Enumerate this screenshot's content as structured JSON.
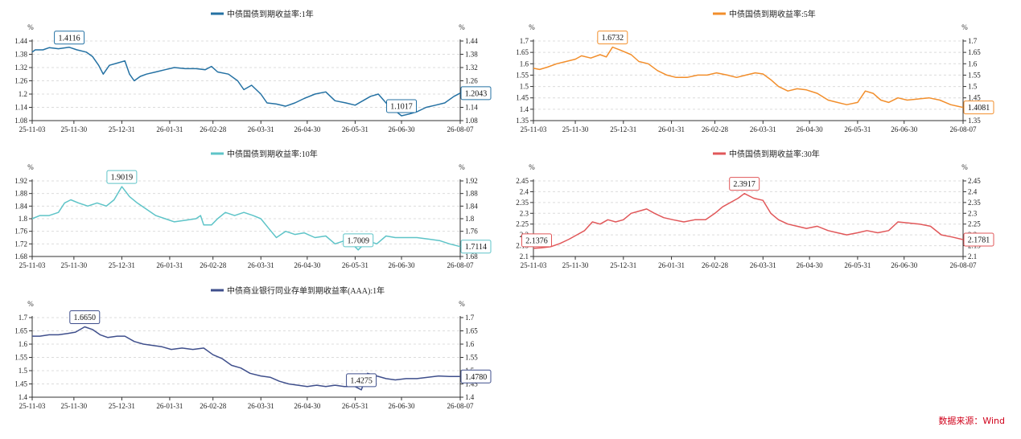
{
  "source": "数据来源：Wind",
  "percent_symbol": "%",
  "chart_data": [
    {
      "type": "line",
      "title": "",
      "color": "#2471a3",
      "series": [
        {
          "name": "中债国债到期收益率:1年"
        }
      ],
      "x_ticks": [
        "25-11-03",
        "25-11-30",
        "25-12-31",
        "26-01-31",
        "26-02-28",
        "26-03-31",
        "26-04-30",
        "26-05-31",
        "26-06-30",
        "26-08-07"
      ],
      "ylim": [
        1.08,
        1.44
      ],
      "y_ticks": [
        "1.08",
        "1.14",
        "1.2",
        "1.26",
        "1.32",
        "1.38",
        "1.44"
      ],
      "grid": true,
      "annotations": [
        {
          "label": "1.4116",
          "x": "2025-11-27",
          "y": 1.4116,
          "kind": "max"
        },
        {
          "label": "1.1017",
          "x": "2026-06-30",
          "y": 1.1017,
          "kind": "min"
        },
        {
          "label": "1.2043",
          "x": "2026-08-07",
          "y": 1.2043,
          "kind": "last"
        }
      ],
      "data": [
        [
          "2025-11-03",
          1.39
        ],
        [
          "2025-11-05",
          1.4
        ],
        [
          "2025-11-10",
          1.4
        ],
        [
          "2025-11-14",
          1.41
        ],
        [
          "2025-11-20",
          1.405
        ],
        [
          "2025-11-27",
          1.4116
        ],
        [
          "2025-12-02",
          1.4
        ],
        [
          "2025-12-08",
          1.39
        ],
        [
          "2025-12-12",
          1.37
        ],
        [
          "2025-12-16",
          1.33
        ],
        [
          "2025-12-19",
          1.29
        ],
        [
          "2025-12-23",
          1.33
        ],
        [
          "2025-12-28",
          1.34
        ],
        [
          "2026-01-02",
          1.35
        ],
        [
          "2026-01-05",
          1.29
        ],
        [
          "2026-01-08",
          1.26
        ],
        [
          "2026-01-12",
          1.28
        ],
        [
          "2026-01-16",
          1.29
        ],
        [
          "2026-01-22",
          1.3
        ],
        [
          "2026-01-28",
          1.31
        ],
        [
          "2026-02-03",
          1.32
        ],
        [
          "2026-02-10",
          1.315
        ],
        [
          "2026-02-17",
          1.315
        ],
        [
          "2026-02-23",
          1.31
        ],
        [
          "2026-02-27",
          1.325
        ],
        [
          "2026-03-03",
          1.3
        ],
        [
          "2026-03-10",
          1.29
        ],
        [
          "2026-03-16",
          1.26
        ],
        [
          "2026-03-20",
          1.22
        ],
        [
          "2026-03-25",
          1.24
        ],
        [
          "2026-03-31",
          1.2
        ],
        [
          "2026-04-04",
          1.16
        ],
        [
          "2026-04-10",
          1.155
        ],
        [
          "2026-04-16",
          1.145
        ],
        [
          "2026-04-22",
          1.16
        ],
        [
          "2026-04-28",
          1.18
        ],
        [
          "2026-05-05",
          1.2
        ],
        [
          "2026-05-12",
          1.21
        ],
        [
          "2026-05-18",
          1.17
        ],
        [
          "2026-05-25",
          1.16
        ],
        [
          "2026-05-31",
          1.15
        ],
        [
          "2026-06-05",
          1.17
        ],
        [
          "2026-06-10",
          1.19
        ],
        [
          "2026-06-15",
          1.2
        ],
        [
          "2026-06-20",
          1.16
        ],
        [
          "2026-06-25",
          1.13
        ],
        [
          "2026-06-30",
          1.1017
        ],
        [
          "2026-07-05",
          1.11
        ],
        [
          "2026-07-10",
          1.12
        ],
        [
          "2026-07-16",
          1.14
        ],
        [
          "2026-07-22",
          1.15
        ],
        [
          "2026-07-28",
          1.16
        ],
        [
          "2026-08-03",
          1.19
        ],
        [
          "2026-08-07",
          1.2043
        ]
      ]
    },
    {
      "type": "line",
      "title": "",
      "color": "#f28e2b",
      "series": [
        {
          "name": "中债国债到期收益率:5年"
        }
      ],
      "x_ticks": [
        "25-11-03",
        "25-11-30",
        "25-12-31",
        "26-01-31",
        "26-02-28",
        "26-03-31",
        "26-04-30",
        "26-05-31",
        "26-06-30",
        "26-08-07"
      ],
      "ylim": [
        1.35,
        1.7
      ],
      "y_ticks": [
        "1.35",
        "1.4",
        "1.45",
        "1.5",
        "1.55",
        "1.6",
        "1.65",
        "1.7"
      ],
      "grid": true,
      "annotations": [
        {
          "label": "1.6732",
          "x": "2025-12-24",
          "y": 1.6732,
          "kind": "max"
        },
        {
          "label": "1.4081",
          "x": "2026-08-07",
          "y": 1.4081,
          "kind": "last"
        }
      ],
      "data": [
        [
          "2025-11-03",
          1.58
        ],
        [
          "2025-11-07",
          1.575
        ],
        [
          "2025-11-12",
          1.585
        ],
        [
          "2025-11-18",
          1.6
        ],
        [
          "2025-11-24",
          1.61
        ],
        [
          "2025-11-30",
          1.62
        ],
        [
          "2025-12-04",
          1.635
        ],
        [
          "2025-12-10",
          1.625
        ],
        [
          "2025-12-16",
          1.64
        ],
        [
          "2025-12-20",
          1.63
        ],
        [
          "2025-12-24",
          1.6732
        ],
        [
          "2025-12-29",
          1.66
        ],
        [
          "2026-01-05",
          1.64
        ],
        [
          "2026-01-10",
          1.61
        ],
        [
          "2026-01-16",
          1.6
        ],
        [
          "2026-01-22",
          1.57
        ],
        [
          "2026-01-28",
          1.55
        ],
        [
          "2026-02-03",
          1.54
        ],
        [
          "2026-02-10",
          1.54
        ],
        [
          "2026-02-17",
          1.55
        ],
        [
          "2026-02-23",
          1.55
        ],
        [
          "2026-03-01",
          1.56
        ],
        [
          "2026-03-08",
          1.55
        ],
        [
          "2026-03-14",
          1.54
        ],
        [
          "2026-03-20",
          1.55
        ],
        [
          "2026-03-26",
          1.56
        ],
        [
          "2026-03-31",
          1.555
        ],
        [
          "2026-04-05",
          1.53
        ],
        [
          "2026-04-10",
          1.5
        ],
        [
          "2026-04-16",
          1.48
        ],
        [
          "2026-04-22",
          1.49
        ],
        [
          "2026-04-28",
          1.485
        ],
        [
          "2026-05-05",
          1.47
        ],
        [
          "2026-05-12",
          1.44
        ],
        [
          "2026-05-18",
          1.43
        ],
        [
          "2026-05-24",
          1.42
        ],
        [
          "2026-05-31",
          1.43
        ],
        [
          "2026-06-05",
          1.48
        ],
        [
          "2026-06-10",
          1.47
        ],
        [
          "2026-06-15",
          1.44
        ],
        [
          "2026-06-20",
          1.43
        ],
        [
          "2026-06-26",
          1.45
        ],
        [
          "2026-07-02",
          1.44
        ],
        [
          "2026-07-09",
          1.445
        ],
        [
          "2026-07-16",
          1.45
        ],
        [
          "2026-07-23",
          1.44
        ],
        [
          "2026-07-30",
          1.42
        ],
        [
          "2026-08-07",
          1.4081
        ]
      ]
    },
    {
      "type": "line",
      "title": "",
      "color": "#5ec4c8",
      "series": [
        {
          "name": "中债国债到期收益率:10年"
        }
      ],
      "x_ticks": [
        "25-11-03",
        "25-11-30",
        "25-12-31",
        "26-01-31",
        "26-02-28",
        "26-03-31",
        "26-04-30",
        "26-05-31",
        "26-06-30",
        "26-08-07"
      ],
      "ylim": [
        1.68,
        1.92
      ],
      "y_ticks": [
        "1.68",
        "1.72",
        "1.76",
        "1.8",
        "1.84",
        "1.88",
        "1.92"
      ],
      "grid": true,
      "annotations": [
        {
          "label": "1.9019",
          "x": "2025-12-31",
          "y": 1.9019,
          "kind": "max"
        },
        {
          "label": "1.7009",
          "x": "2026-06-02",
          "y": 1.7009,
          "kind": "min"
        },
        {
          "label": "1.7114",
          "x": "2026-08-07",
          "y": 1.7114,
          "kind": "last"
        }
      ],
      "data": [
        [
          "2025-11-03",
          1.8
        ],
        [
          "2025-11-08",
          1.81
        ],
        [
          "2025-11-14",
          1.81
        ],
        [
          "2025-11-20",
          1.82
        ],
        [
          "2025-11-24",
          1.85
        ],
        [
          "2025-11-28",
          1.86
        ],
        [
          "2025-12-03",
          1.85
        ],
        [
          "2025-12-09",
          1.84
        ],
        [
          "2025-12-15",
          1.85
        ],
        [
          "2025-12-21",
          1.84
        ],
        [
          "2025-12-26",
          1.86
        ],
        [
          "2025-12-31",
          1.9019
        ],
        [
          "2026-01-05",
          1.87
        ],
        [
          "2026-01-10",
          1.85
        ],
        [
          "2026-01-16",
          1.83
        ],
        [
          "2026-01-22",
          1.81
        ],
        [
          "2026-01-28",
          1.8
        ],
        [
          "2026-02-03",
          1.79
        ],
        [
          "2026-02-10",
          1.795
        ],
        [
          "2026-02-17",
          1.8
        ],
        [
          "2026-02-20",
          1.81
        ],
        [
          "2026-02-22",
          1.78
        ],
        [
          "2026-02-27",
          1.78
        ],
        [
          "2026-03-03",
          1.8
        ],
        [
          "2026-03-08",
          1.82
        ],
        [
          "2026-03-14",
          1.81
        ],
        [
          "2026-03-20",
          1.82
        ],
        [
          "2026-03-26",
          1.81
        ],
        [
          "2026-03-31",
          1.8
        ],
        [
          "2026-04-05",
          1.77
        ],
        [
          "2026-04-10",
          1.74
        ],
        [
          "2026-04-16",
          1.76
        ],
        [
          "2026-04-22",
          1.75
        ],
        [
          "2026-04-28",
          1.755
        ],
        [
          "2026-05-05",
          1.74
        ],
        [
          "2026-05-12",
          1.745
        ],
        [
          "2026-05-18",
          1.72
        ],
        [
          "2026-05-24",
          1.73
        ],
        [
          "2026-05-29",
          1.72
        ],
        [
          "2026-06-02",
          1.7009
        ],
        [
          "2026-06-08",
          1.73
        ],
        [
          "2026-06-14",
          1.72
        ],
        [
          "2026-06-20",
          1.745
        ],
        [
          "2026-06-26",
          1.74
        ],
        [
          "2026-07-02",
          1.74
        ],
        [
          "2026-07-10",
          1.74
        ],
        [
          "2026-07-18",
          1.735
        ],
        [
          "2026-07-25",
          1.73
        ],
        [
          "2026-07-31",
          1.72
        ],
        [
          "2026-08-07",
          1.7114
        ]
      ]
    },
    {
      "type": "line",
      "title": "",
      "color": "#e15759",
      "series": [
        {
          "name": "中债国债到期收益率:30年"
        }
      ],
      "x_ticks": [
        "25-11-03",
        "25-11-30",
        "25-12-31",
        "26-01-31",
        "26-02-28",
        "26-03-31",
        "26-04-30",
        "26-05-31",
        "26-06-30",
        "26-08-07"
      ],
      "ylim": [
        2.1,
        2.45
      ],
      "y_ticks": [
        "2.1",
        "2.15",
        "2.2",
        "2.25",
        "2.3",
        "2.35",
        "2.4",
        "2.45"
      ],
      "grid": true,
      "annotations": [
        {
          "label": "2.1376",
          "x": "2025-11-03",
          "y": 2.1376,
          "kind": "first"
        },
        {
          "label": "2.3917",
          "x": "2026-03-19",
          "y": 2.3917,
          "kind": "max"
        },
        {
          "label": "2.1781",
          "x": "2026-08-07",
          "y": 2.1781,
          "kind": "last"
        }
      ],
      "data": [
        [
          "2025-11-03",
          2.1376
        ],
        [
          "2025-11-08",
          2.14
        ],
        [
          "2025-11-14",
          2.145
        ],
        [
          "2025-11-20",
          2.16
        ],
        [
          "2025-11-26",
          2.18
        ],
        [
          "2025-12-01",
          2.2
        ],
        [
          "2025-12-06",
          2.22
        ],
        [
          "2025-12-11",
          2.26
        ],
        [
          "2025-12-16",
          2.25
        ],
        [
          "2025-12-21",
          2.27
        ],
        [
          "2025-12-26",
          2.26
        ],
        [
          "2025-12-31",
          2.27
        ],
        [
          "2026-01-05",
          2.3
        ],
        [
          "2026-01-10",
          2.31
        ],
        [
          "2026-01-15",
          2.32
        ],
        [
          "2026-01-20",
          2.3
        ],
        [
          "2026-01-26",
          2.28
        ],
        [
          "2026-02-01",
          2.27
        ],
        [
          "2026-02-08",
          2.26
        ],
        [
          "2026-02-15",
          2.27
        ],
        [
          "2026-02-22",
          2.27
        ],
        [
          "2026-02-28",
          2.3
        ],
        [
          "2026-03-05",
          2.33
        ],
        [
          "2026-03-10",
          2.35
        ],
        [
          "2026-03-15",
          2.37
        ],
        [
          "2026-03-19",
          2.3917
        ],
        [
          "2026-03-25",
          2.37
        ],
        [
          "2026-03-31",
          2.36
        ],
        [
          "2026-04-05",
          2.3
        ],
        [
          "2026-04-10",
          2.27
        ],
        [
          "2026-04-16",
          2.25
        ],
        [
          "2026-04-22",
          2.24
        ],
        [
          "2026-04-28",
          2.23
        ],
        [
          "2026-05-05",
          2.24
        ],
        [
          "2026-05-12",
          2.22
        ],
        [
          "2026-05-18",
          2.21
        ],
        [
          "2026-05-24",
          2.2
        ],
        [
          "2026-05-31",
          2.21
        ],
        [
          "2026-06-06",
          2.22
        ],
        [
          "2026-06-13",
          2.21
        ],
        [
          "2026-06-20",
          2.22
        ],
        [
          "2026-06-26",
          2.26
        ],
        [
          "2026-07-03",
          2.255
        ],
        [
          "2026-07-10",
          2.25
        ],
        [
          "2026-07-17",
          2.24
        ],
        [
          "2026-07-24",
          2.2
        ],
        [
          "2026-07-31",
          2.19
        ],
        [
          "2026-08-07",
          2.1781
        ]
      ]
    },
    {
      "type": "line",
      "title": "",
      "color": "#3f4f8c",
      "series": [
        {
          "name": "中债商业银行同业存单到期收益率(AAA):1年"
        }
      ],
      "x_ticks": [
        "25-11-03",
        "25-11-30",
        "25-12-31",
        "26-01-31",
        "26-02-28",
        "26-03-31",
        "26-04-30",
        "26-05-31",
        "26-06-30",
        "26-08-07"
      ],
      "ylim": [
        1.4,
        1.7
      ],
      "y_ticks": [
        "1.4",
        "1.45",
        "1.5",
        "1.55",
        "1.6",
        "1.65",
        "1.7"
      ],
      "grid": true,
      "annotations": [
        {
          "label": "1.6650",
          "x": "2025-12-07",
          "y": 1.665,
          "kind": "max"
        },
        {
          "label": "1.4275",
          "x": "2026-06-04",
          "y": 1.4275,
          "kind": "min"
        },
        {
          "label": "1.4780",
          "x": "2026-08-07",
          "y": 1.478,
          "kind": "last"
        }
      ],
      "data": [
        [
          "2025-11-03",
          1.63
        ],
        [
          "2025-11-08",
          1.63
        ],
        [
          "2025-11-14",
          1.635
        ],
        [
          "2025-11-20",
          1.635
        ],
        [
          "2025-11-26",
          1.64
        ],
        [
          "2025-12-01",
          1.645
        ],
        [
          "2025-12-07",
          1.665
        ],
        [
          "2025-12-12",
          1.655
        ],
        [
          "2025-12-17",
          1.635
        ],
        [
          "2025-12-22",
          1.625
        ],
        [
          "2025-12-28",
          1.63
        ],
        [
          "2026-01-02",
          1.63
        ],
        [
          "2026-01-08",
          1.61
        ],
        [
          "2026-01-14",
          1.6
        ],
        [
          "2026-01-20",
          1.595
        ],
        [
          "2026-01-26",
          1.59
        ],
        [
          "2026-02-01",
          1.58
        ],
        [
          "2026-02-08",
          1.585
        ],
        [
          "2026-02-15",
          1.58
        ],
        [
          "2026-02-22",
          1.585
        ],
        [
          "2026-02-28",
          1.56
        ],
        [
          "2026-03-06",
          1.545
        ],
        [
          "2026-03-12",
          1.52
        ],
        [
          "2026-03-18",
          1.51
        ],
        [
          "2026-03-24",
          1.49
        ],
        [
          "2026-03-31",
          1.48
        ],
        [
          "2026-04-06",
          1.475
        ],
        [
          "2026-04-12",
          1.46
        ],
        [
          "2026-04-18",
          1.45
        ],
        [
          "2026-04-24",
          1.445
        ],
        [
          "2026-04-30",
          1.44
        ],
        [
          "2026-05-06",
          1.445
        ],
        [
          "2026-05-12",
          1.44
        ],
        [
          "2026-05-18",
          1.445
        ],
        [
          "2026-05-24",
          1.44
        ],
        [
          "2026-05-31",
          1.44
        ],
        [
          "2026-06-04",
          1.4275
        ],
        [
          "2026-06-08",
          1.49
        ],
        [
          "2026-06-14",
          1.48
        ],
        [
          "2026-06-20",
          1.47
        ],
        [
          "2026-06-26",
          1.465
        ],
        [
          "2026-07-03",
          1.47
        ],
        [
          "2026-07-10",
          1.47
        ],
        [
          "2026-07-17",
          1.475
        ],
        [
          "2026-07-24",
          1.48
        ],
        [
          "2026-07-31",
          1.478
        ],
        [
          "2026-08-07",
          1.478
        ]
      ]
    }
  ]
}
